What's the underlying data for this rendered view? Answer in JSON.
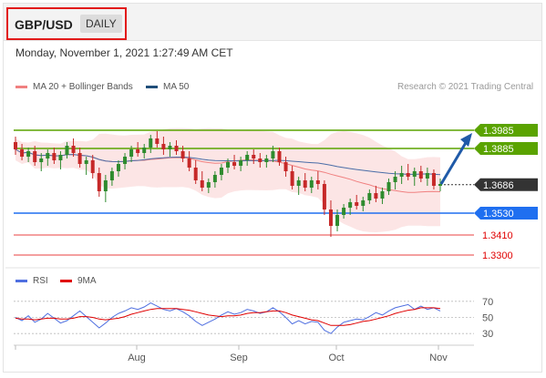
{
  "header": {
    "symbol": "GBP/USD",
    "period_button": "DAILY",
    "timestamp": "Monday, November 1, 2021 1:27:49 AM CET"
  },
  "legend": {
    "items": [
      {
        "label": "MA 20 + Bollinger Bands",
        "color": "#f08080"
      },
      {
        "label": "MA 50",
        "color": "#1f4e79"
      }
    ],
    "credit": "Research © 2021 Trading Central"
  },
  "rsi_legend": {
    "items": [
      {
        "label": "RSI",
        "color": "#4f6fe0"
      },
      {
        "label": "9MA",
        "color": "#e00000"
      }
    ]
  },
  "chart_data": [
    {
      "type": "candlestick",
      "panel": "price",
      "x_tick_labels": [
        "Aug",
        "Sep",
        "Oct",
        "Nov"
      ],
      "ylim": [
        1.325,
        1.415
      ],
      "current_price": "1.3686",
      "levels": [
        {
          "value": 1.3985,
          "label": "1.3985",
          "role": "resistance",
          "color": "#5aa300",
          "tag": true
        },
        {
          "value": 1.3885,
          "label": "1.3885",
          "role": "resistance",
          "color": "#5aa300",
          "tag": true
        },
        {
          "value": 1.3686,
          "label": "1.3686",
          "role": "last",
          "color": "#333333",
          "tag": true
        },
        {
          "value": 1.353,
          "label": "1.3530",
          "role": "pivot",
          "color": "#1f6ff0",
          "tag": true
        },
        {
          "value": 1.341,
          "label": "1.3410",
          "role": "support",
          "color": "#e00000",
          "tag": false
        },
        {
          "value": 1.33,
          "label": "1.3300",
          "role": "support",
          "color": "#e00000",
          "tag": false
        }
      ],
      "ohlc": [
        [
          1.392,
          1.395,
          1.385,
          1.388
        ],
        [
          1.388,
          1.391,
          1.382,
          1.384
        ],
        [
          1.384,
          1.389,
          1.381,
          1.387
        ],
        [
          1.387,
          1.39,
          1.379,
          1.381
        ],
        [
          1.381,
          1.386,
          1.376,
          1.383
        ],
        [
          1.383,
          1.388,
          1.379,
          1.386
        ],
        [
          1.386,
          1.389,
          1.38,
          1.382
        ],
        [
          1.382,
          1.387,
          1.377,
          1.385
        ],
        [
          1.385,
          1.392,
          1.383,
          1.39
        ],
        [
          1.39,
          1.394,
          1.384,
          1.386
        ],
        [
          1.386,
          1.389,
          1.378,
          1.38
        ],
        [
          1.38,
          1.384,
          1.374,
          1.382
        ],
        [
          1.382,
          1.385,
          1.372,
          1.375
        ],
        [
          1.375,
          1.378,
          1.362,
          1.365
        ],
        [
          1.365,
          1.374,
          1.359,
          1.371
        ],
        [
          1.371,
          1.378,
          1.368,
          1.376
        ],
        [
          1.376,
          1.382,
          1.373,
          1.38
        ],
        [
          1.38,
          1.386,
          1.377,
          1.384
        ],
        [
          1.384,
          1.39,
          1.381,
          1.388
        ],
        [
          1.388,
          1.392,
          1.384,
          1.386
        ],
        [
          1.386,
          1.391,
          1.383,
          1.389
        ],
        [
          1.389,
          1.396,
          1.386,
          1.394
        ],
        [
          1.394,
          1.398,
          1.389,
          1.391
        ],
        [
          1.391,
          1.395,
          1.385,
          1.388
        ],
        [
          1.388,
          1.392,
          1.384,
          1.39
        ],
        [
          1.39,
          1.393,
          1.385,
          1.387
        ],
        [
          1.387,
          1.39,
          1.381,
          1.383
        ],
        [
          1.383,
          1.387,
          1.376,
          1.378
        ],
        [
          1.378,
          1.382,
          1.369,
          1.371
        ],
        [
          1.371,
          1.376,
          1.365,
          1.367
        ],
        [
          1.367,
          1.372,
          1.364,
          1.37
        ],
        [
          1.37,
          1.376,
          1.367,
          1.374
        ],
        [
          1.374,
          1.38,
          1.371,
          1.378
        ],
        [
          1.378,
          1.383,
          1.375,
          1.381
        ],
        [
          1.381,
          1.385,
          1.377,
          1.379
        ],
        [
          1.379,
          1.384,
          1.376,
          1.382
        ],
        [
          1.382,
          1.387,
          1.379,
          1.385
        ],
        [
          1.385,
          1.388,
          1.38,
          1.383
        ],
        [
          1.383,
          1.386,
          1.378,
          1.381
        ],
        [
          1.381,
          1.385,
          1.378,
          1.383
        ],
        [
          1.383,
          1.39,
          1.381,
          1.387
        ],
        [
          1.387,
          1.389,
          1.379,
          1.381
        ],
        [
          1.381,
          1.384,
          1.373,
          1.376
        ],
        [
          1.376,
          1.379,
          1.366,
          1.368
        ],
        [
          1.368,
          1.373,
          1.363,
          1.371
        ],
        [
          1.371,
          1.375,
          1.365,
          1.367
        ],
        [
          1.367,
          1.373,
          1.364,
          1.371
        ],
        [
          1.371,
          1.376,
          1.366,
          1.369
        ],
        [
          1.369,
          1.371,
          1.352,
          1.355
        ],
        [
          1.355,
          1.36,
          1.34,
          1.346
        ],
        [
          1.346,
          1.355,
          1.343,
          1.352
        ],
        [
          1.352,
          1.358,
          1.35,
          1.356
        ],
        [
          1.356,
          1.361,
          1.352,
          1.359
        ],
        [
          1.359,
          1.363,
          1.355,
          1.357
        ],
        [
          1.357,
          1.362,
          1.354,
          1.36
        ],
        [
          1.36,
          1.366,
          1.358,
          1.364
        ],
        [
          1.364,
          1.368,
          1.359,
          1.361
        ],
        [
          1.361,
          1.367,
          1.358,
          1.365
        ],
        [
          1.365,
          1.372,
          1.363,
          1.37
        ],
        [
          1.37,
          1.376,
          1.366,
          1.373
        ],
        [
          1.373,
          1.379,
          1.369,
          1.375
        ],
        [
          1.375,
          1.38,
          1.371,
          1.373
        ],
        [
          1.373,
          1.378,
          1.368,
          1.376
        ],
        [
          1.376,
          1.379,
          1.37,
          1.372
        ],
        [
          1.372,
          1.378,
          1.368,
          1.375
        ],
        [
          1.375,
          1.377,
          1.366,
          1.368
        ],
        [
          1.368,
          1.372,
          1.365,
          1.369
        ]
      ]
    },
    {
      "type": "line",
      "panel": "rsi",
      "x_tick_labels": [
        "Aug",
        "Sep",
        "Oct",
        "Nov"
      ],
      "ylim": [
        20,
        80
      ],
      "y_ticks": [
        "70",
        "50",
        "30"
      ],
      "series": [
        {
          "name": "RSI",
          "color": "#4f6fe0",
          "values": [
            50,
            46,
            52,
            44,
            48,
            55,
            49,
            43,
            46,
            52,
            58,
            51,
            44,
            37,
            43,
            50,
            55,
            58,
            62,
            60,
            63,
            68,
            64,
            60,
            58,
            61,
            57,
            52,
            45,
            40,
            44,
            48,
            53,
            57,
            54,
            56,
            60,
            58,
            55,
            57,
            62,
            57,
            50,
            42,
            46,
            42,
            45,
            44,
            34,
            30,
            38,
            44,
            46,
            48,
            47,
            51,
            56,
            53,
            58,
            62,
            64,
            66,
            60,
            64,
            60,
            62,
            58
          ]
        },
        {
          "name": "9MA",
          "color": "#e00000",
          "values": [
            49,
            48,
            48,
            47,
            48,
            49,
            49,
            48,
            48,
            49,
            51,
            51,
            50,
            48,
            47,
            48,
            49,
            51,
            54,
            56,
            58,
            60,
            61,
            61,
            61,
            61,
            60,
            59,
            57,
            55,
            53,
            52,
            51,
            52,
            52,
            53,
            55,
            56,
            56,
            57,
            58,
            58,
            56,
            53,
            51,
            49,
            47,
            46,
            43,
            40,
            40,
            40,
            41,
            43,
            45,
            46,
            48,
            50,
            52,
            55,
            57,
            59,
            60,
            62,
            62,
            62,
            61
          ]
        }
      ]
    }
  ]
}
